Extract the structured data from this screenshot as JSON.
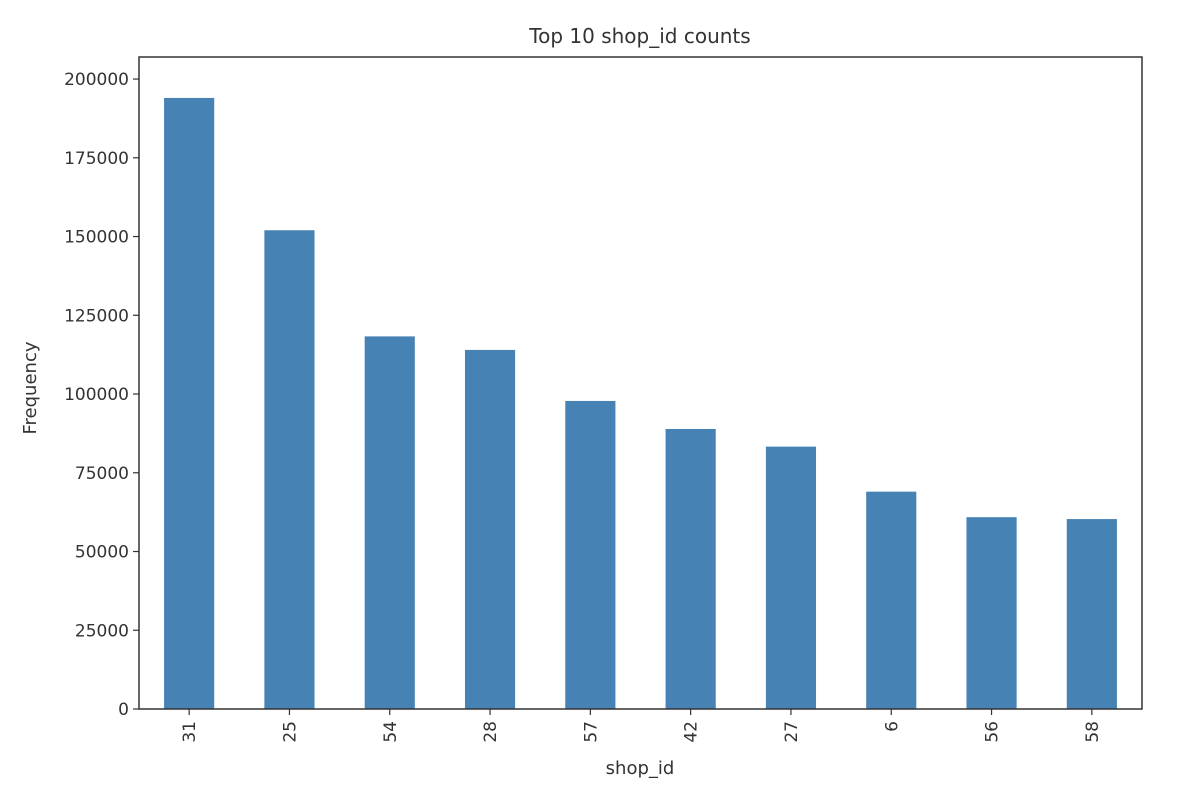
{
  "chart_data": {
    "type": "bar",
    "title": "Top 10 shop_id counts",
    "xlabel": "shop_id",
    "ylabel": "Frequency",
    "categories": [
      "31",
      "25",
      "54",
      "28",
      "57",
      "42",
      "27",
      "6",
      "56",
      "58"
    ],
    "values": [
      194000,
      152000,
      118300,
      114000,
      97800,
      88900,
      83300,
      69000,
      60900,
      60300
    ],
    "ylim": [
      0,
      207000
    ],
    "yticks": [
      0,
      25000,
      50000,
      75000,
      100000,
      125000,
      150000,
      175000,
      200000
    ],
    "grid": false,
    "legend": "none",
    "colors": {
      "bar": "#4682b4",
      "axis": "#333333",
      "text": "#333333"
    }
  }
}
